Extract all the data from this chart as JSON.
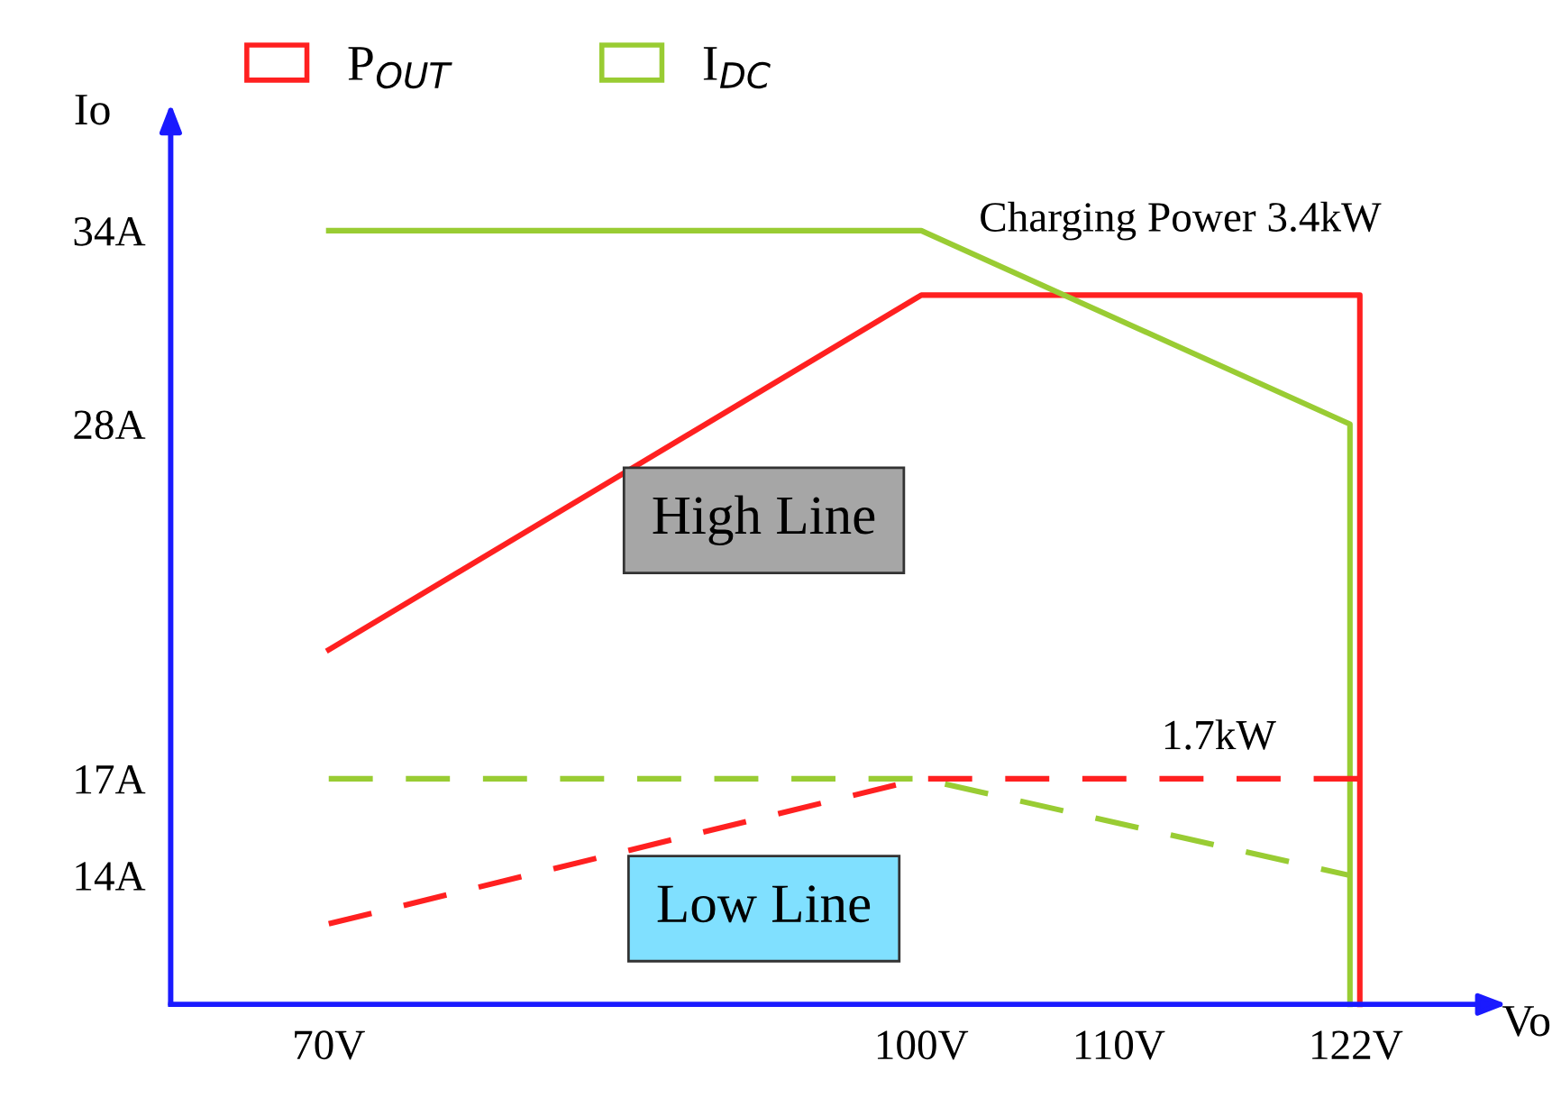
{
  "chart_data": {
    "type": "line",
    "xlabel": "Vo",
    "ylabel": "Io",
    "xlim": [
      62,
      128
    ],
    "ylim": [
      10,
      37
    ],
    "xticks": [
      {
        "value": 70,
        "label": "70V"
      },
      {
        "value": 100,
        "label": "100V"
      },
      {
        "value": 110,
        "label": "110V"
      },
      {
        "value": 122,
        "label": "122V"
      }
    ],
    "yticks": [
      {
        "value": 14,
        "label": "14A"
      },
      {
        "value": 17,
        "label": "17A"
      },
      {
        "value": 28,
        "label": "28A"
      },
      {
        "value": 34,
        "label": "34A"
      }
    ],
    "series": [
      {
        "name": "P$_{OUT}$",
        "color": "#ff2020",
        "x": [
          70,
          100,
          122.2,
          122.2
        ],
        "values": [
          21,
          32,
          32,
          10
        ],
        "line_style": "solid"
      },
      {
        "name": "I$_{DC}$",
        "color": "#99cc33",
        "x": [
          70,
          100,
          121.7,
          121.7
        ],
        "values": [
          34,
          34,
          28,
          10
        ],
        "line_style": "solid"
      },
      {
        "color": "#ff2020",
        "x": [
          70,
          100,
          122.2
        ],
        "values": [
          12.5,
          17,
          17
        ],
        "line_style": "dashed"
      },
      {
        "color": "#99cc33",
        "x": [
          70,
          100,
          121.7
        ],
        "values": [
          17,
          17,
          14
        ],
        "line_style": "dashed"
      }
    ],
    "annotations": [
      "Charging Power 3.4kW",
      "1.7kW",
      "High Line",
      "Low Line"
    ],
    "legend": "top left",
    "grid": false,
    "marker": "none"
  }
}
